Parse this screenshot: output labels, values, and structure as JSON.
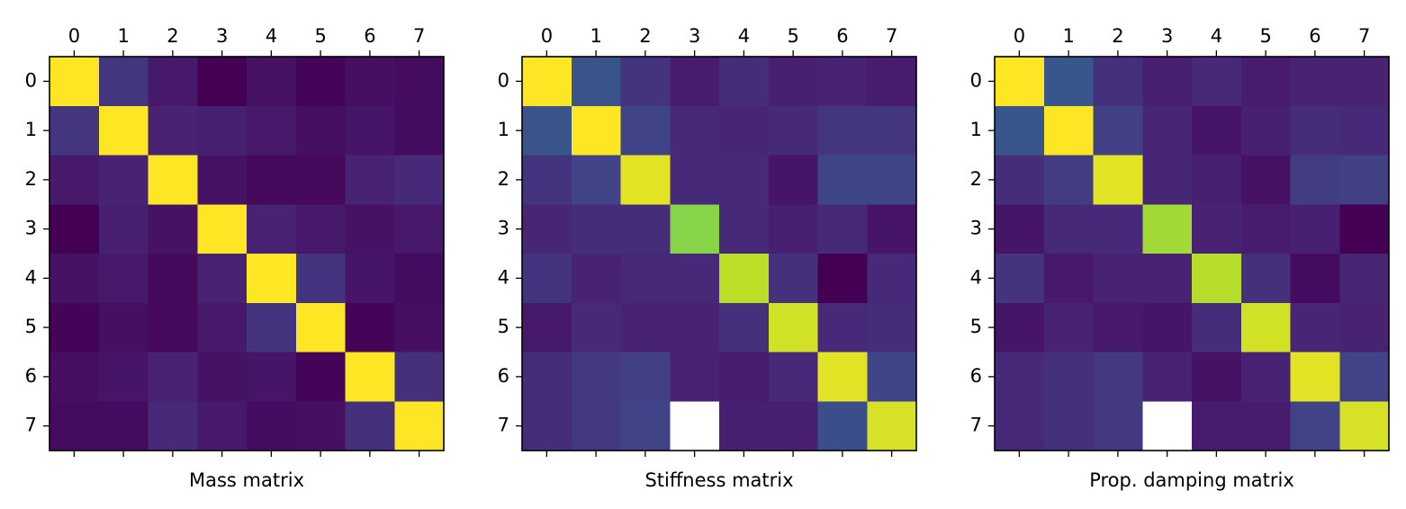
{
  "chart_data": [
    {
      "type": "heatmap",
      "title": "",
      "xlabel": "Mass matrix",
      "ylabel": "",
      "x_ticks": [
        0,
        1,
        2,
        3,
        4,
        5,
        6,
        7
      ],
      "y_ticks": [
        0,
        1,
        2,
        3,
        4,
        5,
        6,
        7
      ],
      "colormap": "viridis",
      "value_range": [
        0,
        1
      ],
      "values": [
        [
          1.0,
          0.16,
          0.07,
          0.0,
          0.05,
          0.01,
          0.04,
          0.03
        ],
        [
          0.16,
          1.0,
          0.1,
          0.09,
          0.07,
          0.04,
          0.06,
          0.03
        ],
        [
          0.07,
          0.1,
          1.0,
          0.05,
          0.02,
          0.02,
          0.1,
          0.12
        ],
        [
          0.0,
          0.09,
          0.05,
          1.0,
          0.1,
          0.07,
          0.05,
          0.07
        ],
        [
          0.05,
          0.07,
          0.02,
          0.1,
          1.0,
          0.15,
          0.06,
          0.03
        ],
        [
          0.01,
          0.04,
          0.02,
          0.07,
          0.15,
          1.0,
          0.01,
          0.04
        ],
        [
          0.04,
          0.06,
          0.1,
          0.05,
          0.06,
          0.01,
          1.0,
          0.14
        ],
        [
          0.03,
          0.03,
          0.12,
          0.07,
          0.03,
          0.04,
          0.14,
          1.0
        ]
      ],
      "masked_cells": []
    },
    {
      "type": "heatmap",
      "title": "",
      "xlabel": "Stiffness matrix",
      "ylabel": "",
      "x_ticks": [
        0,
        1,
        2,
        3,
        4,
        5,
        6,
        7
      ],
      "y_ticks": [
        0,
        1,
        2,
        3,
        4,
        5,
        6,
        7
      ],
      "colormap": "viridis",
      "value_range": [
        0,
        1
      ],
      "values": [
        [
          1.0,
          0.26,
          0.15,
          0.08,
          0.13,
          0.09,
          0.1,
          0.08
        ],
        [
          0.26,
          1.0,
          0.2,
          0.12,
          0.11,
          0.12,
          0.16,
          0.16
        ],
        [
          0.15,
          0.2,
          0.96,
          0.12,
          0.12,
          0.06,
          0.21,
          0.21
        ],
        [
          0.11,
          0.13,
          0.13,
          0.82,
          0.12,
          0.09,
          0.12,
          0.06
        ],
        [
          0.15,
          0.1,
          0.12,
          0.12,
          0.9,
          0.14,
          0.0,
          0.12
        ],
        [
          0.07,
          0.12,
          0.1,
          0.1,
          0.14,
          0.93,
          0.12,
          0.13
        ],
        [
          0.13,
          0.17,
          0.19,
          0.1,
          0.08,
          0.12,
          0.96,
          0.21
        ],
        [
          0.13,
          0.17,
          0.2,
          null,
          0.09,
          0.09,
          0.24,
          0.94
        ]
      ],
      "masked_cells": [
        [
          7,
          3
        ]
      ]
    },
    {
      "type": "heatmap",
      "title": "",
      "xlabel": "Prop. damping matrix",
      "ylabel": "",
      "x_ticks": [
        0,
        1,
        2,
        3,
        4,
        5,
        6,
        7
      ],
      "y_ticks": [
        0,
        1,
        2,
        3,
        4,
        5,
        6,
        7
      ],
      "colormap": "viridis",
      "value_range": [
        0,
        1
      ],
      "values": [
        [
          1.0,
          0.27,
          0.14,
          0.09,
          0.12,
          0.08,
          0.1,
          0.1
        ],
        [
          0.27,
          1.0,
          0.19,
          0.11,
          0.06,
          0.09,
          0.13,
          0.12
        ],
        [
          0.13,
          0.18,
          0.96,
          0.11,
          0.09,
          0.05,
          0.18,
          0.19
        ],
        [
          0.06,
          0.12,
          0.12,
          0.86,
          0.1,
          0.08,
          0.09,
          0.0
        ],
        [
          0.15,
          0.07,
          0.1,
          0.1,
          0.89,
          0.14,
          0.03,
          0.11
        ],
        [
          0.06,
          0.1,
          0.07,
          0.06,
          0.13,
          0.93,
          0.11,
          0.1
        ],
        [
          0.12,
          0.14,
          0.17,
          0.1,
          0.05,
          0.1,
          0.96,
          0.2
        ],
        [
          0.12,
          0.14,
          0.17,
          null,
          0.08,
          0.08,
          0.2,
          0.94
        ]
      ],
      "masked_cells": [
        [
          7,
          3
        ]
      ]
    }
  ]
}
